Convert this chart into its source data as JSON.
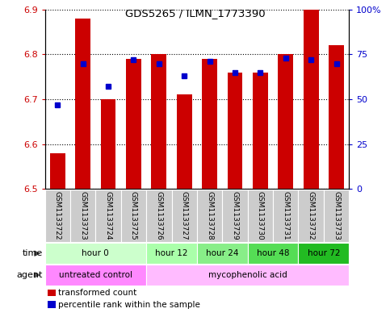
{
  "title": "GDS5265 / ILMN_1773390",
  "samples": [
    "GSM1133722",
    "GSM1133723",
    "GSM1133724",
    "GSM1133725",
    "GSM1133726",
    "GSM1133727",
    "GSM1133728",
    "GSM1133729",
    "GSM1133730",
    "GSM1133731",
    "GSM1133732",
    "GSM1133733"
  ],
  "transformed_count": [
    6.58,
    6.88,
    6.7,
    6.79,
    6.8,
    6.71,
    6.79,
    6.76,
    6.76,
    6.8,
    6.9,
    6.82
  ],
  "percentile_rank": [
    47,
    70,
    57,
    72,
    70,
    63,
    71,
    65,
    65,
    73,
    72,
    70
  ],
  "ylim_left": [
    6.5,
    6.9
  ],
  "ylim_right": [
    0,
    100
  ],
  "yticks_left": [
    6.5,
    6.6,
    6.7,
    6.8,
    6.9
  ],
  "yticks_right": [
    0,
    25,
    50,
    75,
    100
  ],
  "bar_color": "#cc0000",
  "marker_color": "#0000cc",
  "bar_bottom": 6.5,
  "bar_width": 0.6,
  "time_groups": [
    {
      "label": "hour 0",
      "start": 0,
      "end": 3,
      "color": "#ccffcc"
    },
    {
      "label": "hour 12",
      "start": 4,
      "end": 5,
      "color": "#aaffaa"
    },
    {
      "label": "hour 24",
      "start": 6,
      "end": 7,
      "color": "#88ee88"
    },
    {
      "label": "hour 48",
      "start": 8,
      "end": 9,
      "color": "#55dd55"
    },
    {
      "label": "hour 72",
      "start": 10,
      "end": 11,
      "color": "#22bb22"
    }
  ],
  "agent_groups": [
    {
      "label": "untreated control",
      "start": 0,
      "end": 3,
      "color": "#ff88ff"
    },
    {
      "label": "mycophenolic acid",
      "start": 4,
      "end": 11,
      "color": "#ffbbff"
    }
  ],
  "legend_items": [
    {
      "color": "#cc0000",
      "label": "transformed count"
    },
    {
      "color": "#0000cc",
      "label": "percentile rank within the sample"
    }
  ],
  "axis_color_left": "#cc0000",
  "axis_color_right": "#0000cc",
  "sample_bg": "#cccccc",
  "fig_w": 4.83,
  "fig_h": 3.93,
  "dpi": 100
}
